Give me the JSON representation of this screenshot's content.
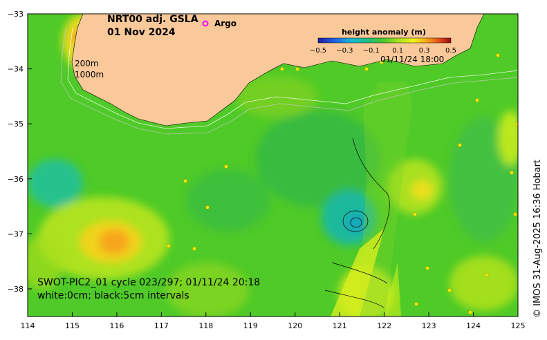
{
  "map": {
    "title_line1": "NRT00 adj. GSLA",
    "title_line2": "01 Nov 2024",
    "legend_marker_label": "Argo",
    "isobath_label_1": "200m",
    "isobath_label_2": "1000m",
    "swath_timestamp": "01/11/24 18:00",
    "caption_line1": "SWOT-PIC2_01 cycle 023/297; 01/11/24 20:18",
    "caption_line2": "white:0cm; black:5cm intervals",
    "credit": "© IMOS 31-Aug-2025 16:36 Hobart",
    "colorbar": {
      "title": "height anomaly (m)",
      "tick_labels": [
        "−0.5",
        "−0.3",
        "−0.1",
        "0.1",
        "0.3",
        "0.5"
      ]
    },
    "x_ticks": [
      "114",
      "115",
      "116",
      "117",
      "118",
      "119",
      "120",
      "121",
      "122",
      "123",
      "124",
      "125"
    ],
    "y_ticks": [
      "−33",
      "−34",
      "−35",
      "−36",
      "−37",
      "−38"
    ],
    "colors": {
      "land": "#f9c99a",
      "ocean_base": "#4fca28",
      "argo_marker": "#ff00ff"
    }
  }
}
